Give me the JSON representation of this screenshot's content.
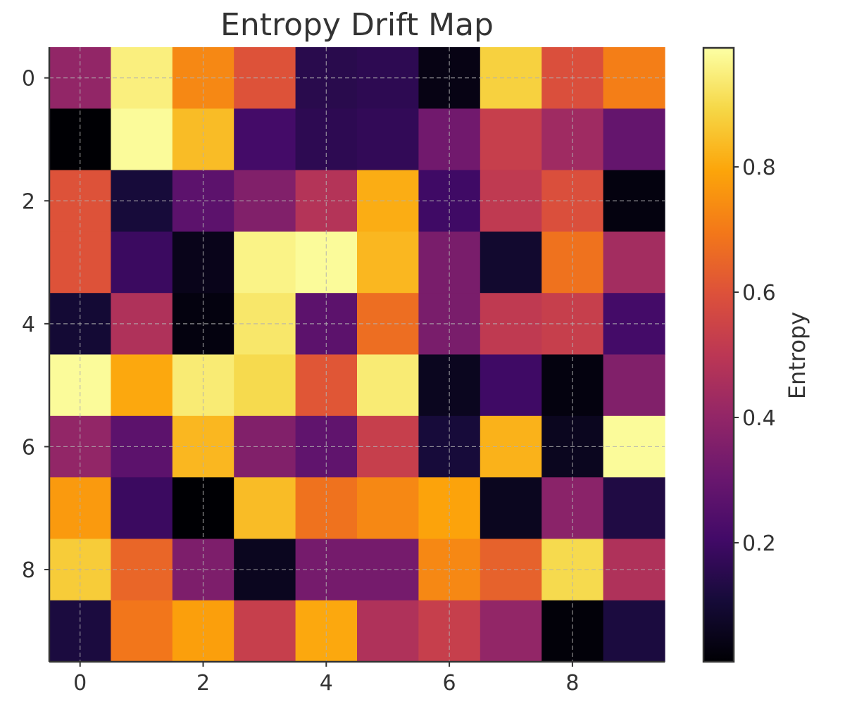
{
  "chart_data": {
    "type": "heatmap",
    "title": "Entropy Drift Map",
    "xlabel": "",
    "ylabel": "",
    "x_ticks": [
      "0",
      "2",
      "4",
      "6",
      "8"
    ],
    "y_ticks": [
      "0",
      "2",
      "4",
      "6",
      "8"
    ],
    "rows": 10,
    "cols": 10,
    "values": [
      [
        0.4,
        0.95,
        0.73,
        0.6,
        0.15,
        0.16,
        0.04,
        0.88,
        0.59,
        0.71
      ],
      [
        0.01,
        0.98,
        0.84,
        0.21,
        0.16,
        0.17,
        0.32,
        0.53,
        0.43,
        0.29
      ],
      [
        0.6,
        0.11,
        0.27,
        0.36,
        0.48,
        0.81,
        0.2,
        0.51,
        0.59,
        0.03
      ],
      [
        0.6,
        0.19,
        0.05,
        0.96,
        0.98,
        0.83,
        0.34,
        0.09,
        0.68,
        0.44
      ],
      [
        0.1,
        0.47,
        0.03,
        0.93,
        0.27,
        0.67,
        0.34,
        0.51,
        0.53,
        0.21
      ],
      [
        0.98,
        0.8,
        0.94,
        0.9,
        0.61,
        0.94,
        0.06,
        0.2,
        0.03,
        0.36
      ],
      [
        0.4,
        0.27,
        0.83,
        0.36,
        0.28,
        0.53,
        0.11,
        0.82,
        0.06,
        0.98
      ],
      [
        0.77,
        0.19,
        0.01,
        0.84,
        0.68,
        0.73,
        0.79,
        0.06,
        0.38,
        0.13
      ],
      [
        0.87,
        0.65,
        0.35,
        0.06,
        0.33,
        0.33,
        0.73,
        0.64,
        0.9,
        0.47
      ],
      [
        0.12,
        0.69,
        0.78,
        0.53,
        0.8,
        0.47,
        0.53,
        0.4,
        0.02,
        0.12
      ]
    ],
    "colorbar": {
      "label": "Entropy",
      "ticks": [
        "0.2",
        "0.4",
        "0.6",
        "0.8"
      ],
      "tick_values": [
        0.2,
        0.4,
        0.6,
        0.8
      ],
      "range": [
        0.01,
        0.99
      ]
    },
    "colormap": "inferno",
    "grid": true
  }
}
